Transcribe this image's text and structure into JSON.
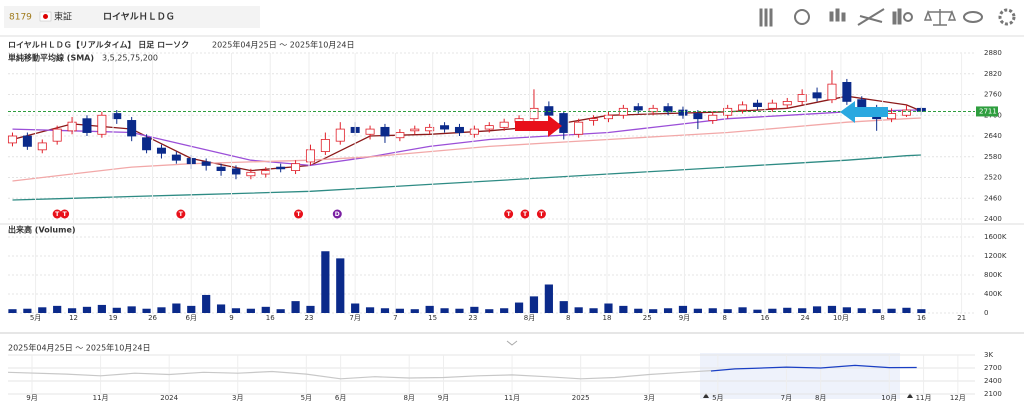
{
  "header": {
    "code": "8179",
    "market": "東証",
    "name": "ロイヤルＨＬＤＧ"
  },
  "chart_data": [
    {
      "type": "candlestick",
      "title": "ロイヤルＨＬＤＧ【リアルタイム】 日足 ローソク",
      "subtitle": "2025年04月25日 ～ 2025年10月24日",
      "indicator": "単純移動平均線 (SMA)",
      "indicator_params": "3,5,25,75,200",
      "current_price": 2711,
      "current_color": "#2e9e3e",
      "up_color": "#e0202a",
      "down_color": "#0b2a8a",
      "xlim": [
        -0.3,
        64.6
      ],
      "ylim": [
        2400,
        2880
      ],
      "yticks": [
        2400,
        2460,
        2520,
        2580,
        2640,
        2700,
        2760,
        2820,
        2880
      ],
      "grid": true,
      "open": [
        2620,
        2640,
        2600,
        2625,
        2655,
        2690,
        2645,
        2705,
        2685,
        2635,
        2605,
        2585,
        2575,
        2565,
        2550,
        2545,
        2525,
        2530,
        2550,
        2540,
        2565,
        2595,
        2625,
        2665,
        2645,
        2665,
        2635,
        2655,
        2655,
        2670,
        2665,
        2645,
        2660,
        2665,
        2680,
        2690,
        2725,
        2705,
        2645,
        2685,
        2690,
        2700,
        2725,
        2710,
        2725,
        2715,
        2705,
        2685,
        2700,
        2715,
        2735,
        2720,
        2730,
        2740,
        2765,
        2745,
        2795,
        2745,
        2720,
        2690,
        2700,
        2720
      ],
      "high": [
        2650,
        2650,
        2630,
        2670,
        2695,
        2700,
        2710,
        2715,
        2695,
        2645,
        2615,
        2595,
        2585,
        2575,
        2560,
        2555,
        2545,
        2550,
        2560,
        2570,
        2615,
        2650,
        2680,
        2680,
        2670,
        2675,
        2660,
        2670,
        2675,
        2680,
        2675,
        2670,
        2680,
        2690,
        2700,
        2775,
        2740,
        2710,
        2690,
        2700,
        2710,
        2730,
        2735,
        2730,
        2735,
        2725,
        2715,
        2710,
        2730,
        2740,
        2745,
        2745,
        2750,
        2775,
        2780,
        2830,
        2805,
        2755,
        2730,
        2720,
        2730,
        2725
      ],
      "low": [
        2610,
        2600,
        2590,
        2615,
        2645,
        2640,
        2635,
        2675,
        2625,
        2590,
        2575,
        2560,
        2545,
        2540,
        2525,
        2515,
        2515,
        2520,
        2535,
        2530,
        2555,
        2585,
        2615,
        2640,
        2630,
        2620,
        2625,
        2645,
        2645,
        2650,
        2640,
        2635,
        2650,
        2655,
        2670,
        2680,
        2690,
        2630,
        2635,
        2670,
        2680,
        2690,
        2705,
        2700,
        2700,
        2690,
        2660,
        2675,
        2690,
        2705,
        2715,
        2710,
        2720,
        2730,
        2740,
        2735,
        2730,
        2700,
        2655,
        2680,
        2695,
        2700
      ],
      "close": [
        2640,
        2610,
        2620,
        2660,
        2680,
        2650,
        2700,
        2690,
        2640,
        2600,
        2590,
        2570,
        2560,
        2555,
        2540,
        2530,
        2535,
        2540,
        2545,
        2560,
        2600,
        2630,
        2660,
        2650,
        2660,
        2640,
        2650,
        2660,
        2665,
        2660,
        2650,
        2660,
        2670,
        2680,
        2690,
        2720,
        2700,
        2650,
        2680,
        2690,
        2700,
        2720,
        2715,
        2720,
        2710,
        2700,
        2690,
        2700,
        2720,
        2730,
        2725,
        2735,
        2740,
        2760,
        2750,
        2790,
        2740,
        2720,
        2690,
        2705,
        2715,
        2711
      ],
      "series": [
        {
          "color": "#8b1a1a",
          "x": [
            0,
            4,
            8,
            12,
            16,
            20,
            24,
            28,
            32,
            36,
            40,
            44,
            48,
            52,
            56,
            60,
            61
          ],
          "values": [
            2630,
            2675,
            2660,
            2575,
            2540,
            2555,
            2640,
            2645,
            2655,
            2670,
            2700,
            2705,
            2710,
            2720,
            2755,
            2730,
            2712
          ]
        },
        {
          "color": "#9b4fd8",
          "x": [
            0,
            4,
            8,
            12,
            16,
            20,
            24,
            28,
            32,
            36,
            40,
            44,
            48,
            52,
            56,
            60,
            61
          ],
          "values": [
            2660,
            2655,
            2650,
            2610,
            2570,
            2555,
            2580,
            2610,
            2630,
            2640,
            2650,
            2670,
            2690,
            2700,
            2710,
            2715,
            2715
          ]
        },
        {
          "color": "#f2a8a8",
          "x": [
            0,
            4,
            8,
            12,
            16,
            20,
            24,
            28,
            32,
            36,
            40,
            44,
            48,
            52,
            56,
            60,
            61
          ],
          "values": [
            2510,
            2530,
            2550,
            2560,
            2565,
            2570,
            2580,
            2595,
            2610,
            2620,
            2630,
            2640,
            2650,
            2665,
            2680,
            2690,
            2692
          ]
        },
        {
          "color": "#2e8b84",
          "x": [
            0,
            4,
            8,
            12,
            16,
            20,
            24,
            28,
            32,
            36,
            40,
            44,
            48,
            52,
            56,
            60,
            61
          ],
          "values": [
            2455,
            2460,
            2465,
            2470,
            2475,
            2480,
            2490,
            2500,
            2510,
            2520,
            2530,
            2540,
            2550,
            2560,
            2570,
            2583,
            2585
          ]
        }
      ],
      "events": [
        {
          "x": 3.0,
          "label": "T",
          "color": "#e8101a"
        },
        {
          "x": 3.5,
          "label": "T",
          "color": "#e8101a"
        },
        {
          "x": 11.3,
          "label": "T",
          "color": "#e8101a"
        },
        {
          "x": 19.2,
          "label": "T",
          "color": "#e8101a"
        },
        {
          "x": 21.8,
          "label": "D",
          "color": "#7a1fa2"
        },
        {
          "x": 33.3,
          "label": "T",
          "color": "#e8101a"
        },
        {
          "x": 34.4,
          "label": "T",
          "color": "#e8101a"
        },
        {
          "x": 35.5,
          "label": "T",
          "color": "#e8101a"
        }
      ]
    },
    {
      "type": "bar",
      "title": "出来高 (Volume)",
      "color": "#0b2a8a",
      "xlim": [
        -0.3,
        64.6
      ],
      "ylim": [
        0,
        1600000
      ],
      "yticks": [
        0,
        {
          "value": 400000,
          "label": "400K"
        },
        {
          "value": 800000,
          "label": "800K"
        },
        {
          "value": 1200000,
          "label": "1200K"
        },
        {
          "value": 1600000,
          "label": "1600K"
        }
      ],
      "values": [
        80000,
        90000,
        120000,
        150000,
        100000,
        130000,
        170000,
        110000,
        140000,
        90000,
        120000,
        200000,
        150000,
        380000,
        180000,
        100000,
        90000,
        130000,
        80000,
        250000,
        150000,
        1300000,
        1150000,
        200000,
        120000,
        100000,
        90000,
        80000,
        150000,
        100000,
        90000,
        130000,
        80000,
        100000,
        220000,
        350000,
        600000,
        250000,
        120000,
        100000,
        200000,
        150000,
        90000,
        80000,
        100000,
        150000,
        90000,
        100000,
        80000,
        120000,
        70000,
        90000,
        110000,
        100000,
        140000,
        150000,
        120000,
        100000,
        80000,
        90000,
        110000,
        80000
      ],
      "xticks": [
        {
          "value": 1.55,
          "label": "5月"
        },
        {
          "value": 4.1,
          "label": "12"
        },
        {
          "value": 6.75,
          "label": "19"
        },
        {
          "value": 9.4,
          "label": "26"
        },
        {
          "value": 12.0,
          "label": "6月"
        },
        {
          "value": 14.7,
          "label": "9"
        },
        {
          "value": 17.3,
          "label": "16"
        },
        {
          "value": 19.9,
          "label": "23"
        },
        {
          "value": 23.0,
          "label": "7月"
        },
        {
          "value": 25.7,
          "label": "7"
        },
        {
          "value": 28.2,
          "label": "15"
        },
        {
          "value": 30.9,
          "label": "23"
        },
        {
          "value": 34.7,
          "label": "8月"
        },
        {
          "value": 37.3,
          "label": "8"
        },
        {
          "value": 39.9,
          "label": "18"
        },
        {
          "value": 42.6,
          "label": "25"
        },
        {
          "value": 45.1,
          "label": "9月"
        },
        {
          "value": 47.8,
          "label": "8"
        },
        {
          "value": 50.5,
          "label": "16"
        },
        {
          "value": 53.2,
          "label": "24"
        },
        {
          "value": 55.6,
          "label": "10月"
        },
        {
          "value": 58.4,
          "label": "8"
        },
        {
          "value": 61.0,
          "label": "16"
        },
        {
          "value": 63.7,
          "label": "21"
        }
      ]
    },
    {
      "type": "line",
      "title": "2025年04月25日 ～ 2025年10月24日",
      "xlim": [
        -0.7,
        27.5
      ],
      "ylim": [
        2100,
        3000
      ],
      "yticks": [
        {
          "value": 3000,
          "label": "3K"
        },
        2700,
        2400,
        2100
      ],
      "xticks": [
        {
          "value": 0,
          "label": "9月"
        },
        {
          "value": 2,
          "label": "11月"
        },
        {
          "value": 4,
          "label": "2024"
        },
        {
          "value": 6,
          "label": "3月"
        },
        {
          "value": 8,
          "label": "5月"
        },
        {
          "value": 9,
          "label": "6月"
        },
        {
          "value": 11,
          "label": "8月"
        },
        {
          "value": 12,
          "label": "9月"
        },
        {
          "value": 14,
          "label": "11月"
        },
        {
          "value": 16,
          "label": "2025"
        },
        {
          "value": 18,
          "label": "3月"
        },
        {
          "value": 20,
          "label": "5月"
        },
        {
          "value": 22,
          "label": "7月"
        },
        {
          "value": 23,
          "label": "8月"
        },
        {
          "value": 25,
          "label": "10月"
        },
        {
          "value": 26,
          "label": "11月"
        },
        {
          "value": 27,
          "label": "12月"
        }
      ],
      "series": [
        {
          "color": "#c8c8c8",
          "x": [
            -0.7,
            1,
            2,
            3,
            4,
            5,
            6,
            7,
            8,
            9,
            10,
            11,
            12,
            13,
            14,
            15,
            16,
            17,
            18,
            19,
            19.8
          ],
          "values": [
            2600,
            2560,
            2520,
            2580,
            2550,
            2600,
            2580,
            2620,
            2560,
            2450,
            2500,
            2470,
            2480,
            2520,
            2540,
            2500,
            2450,
            2480,
            2550,
            2600,
            2640
          ]
        },
        {
          "color": "#1a3fc4",
          "x": [
            19.8,
            20.5,
            21,
            22,
            23,
            24,
            25,
            25.8
          ],
          "values": [
            2630,
            2680,
            2690,
            2720,
            2700,
            2760,
            2710,
            2711
          ]
        }
      ]
    }
  ]
}
